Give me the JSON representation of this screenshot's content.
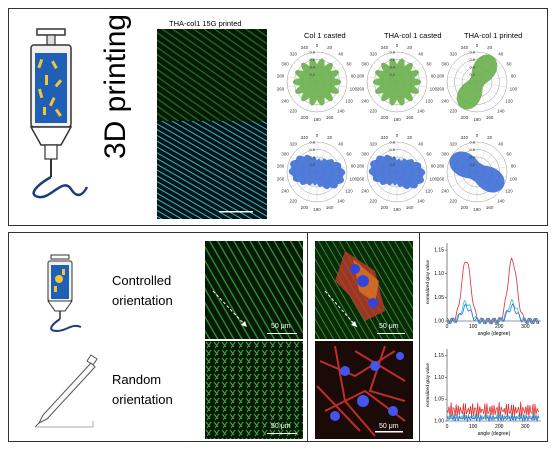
{
  "top_panel": {
    "title": "3D printing",
    "image_label": "THA-col1 15G printed",
    "polar_titles": [
      "Col 1 casted",
      "THA-col 1 casted",
      "THA-col 1 printed"
    ],
    "polar_ticks": [
      "0",
      "20",
      "40",
      "60",
      "80",
      "100",
      "120",
      "140",
      "160",
      "180",
      "200",
      "220",
      "240",
      "260",
      "280",
      "300",
      "320",
      "340"
    ],
    "radial_ticks": [
      "0.2",
      "0.4",
      "0.6",
      "0.8"
    ],
    "colors": {
      "green": "#6ab04c",
      "blue": "#3f6fd6"
    }
  },
  "bottom_panel": {
    "controlled_label": "Controlled orientation",
    "random_label": "Random orientation",
    "scale_label": "50 μm",
    "graph_ylabel": "normalized gray value",
    "graph_xlabel": "angle (degree)",
    "graph1_yticks": [
      "1.00",
      "1.05",
      "1.10",
      "1.15"
    ],
    "graph2_yticks": [
      "1.00",
      "1.05",
      "1.10",
      "1.15"
    ],
    "graph_xticks": [
      "0",
      "100",
      "200",
      "300"
    ]
  }
}
